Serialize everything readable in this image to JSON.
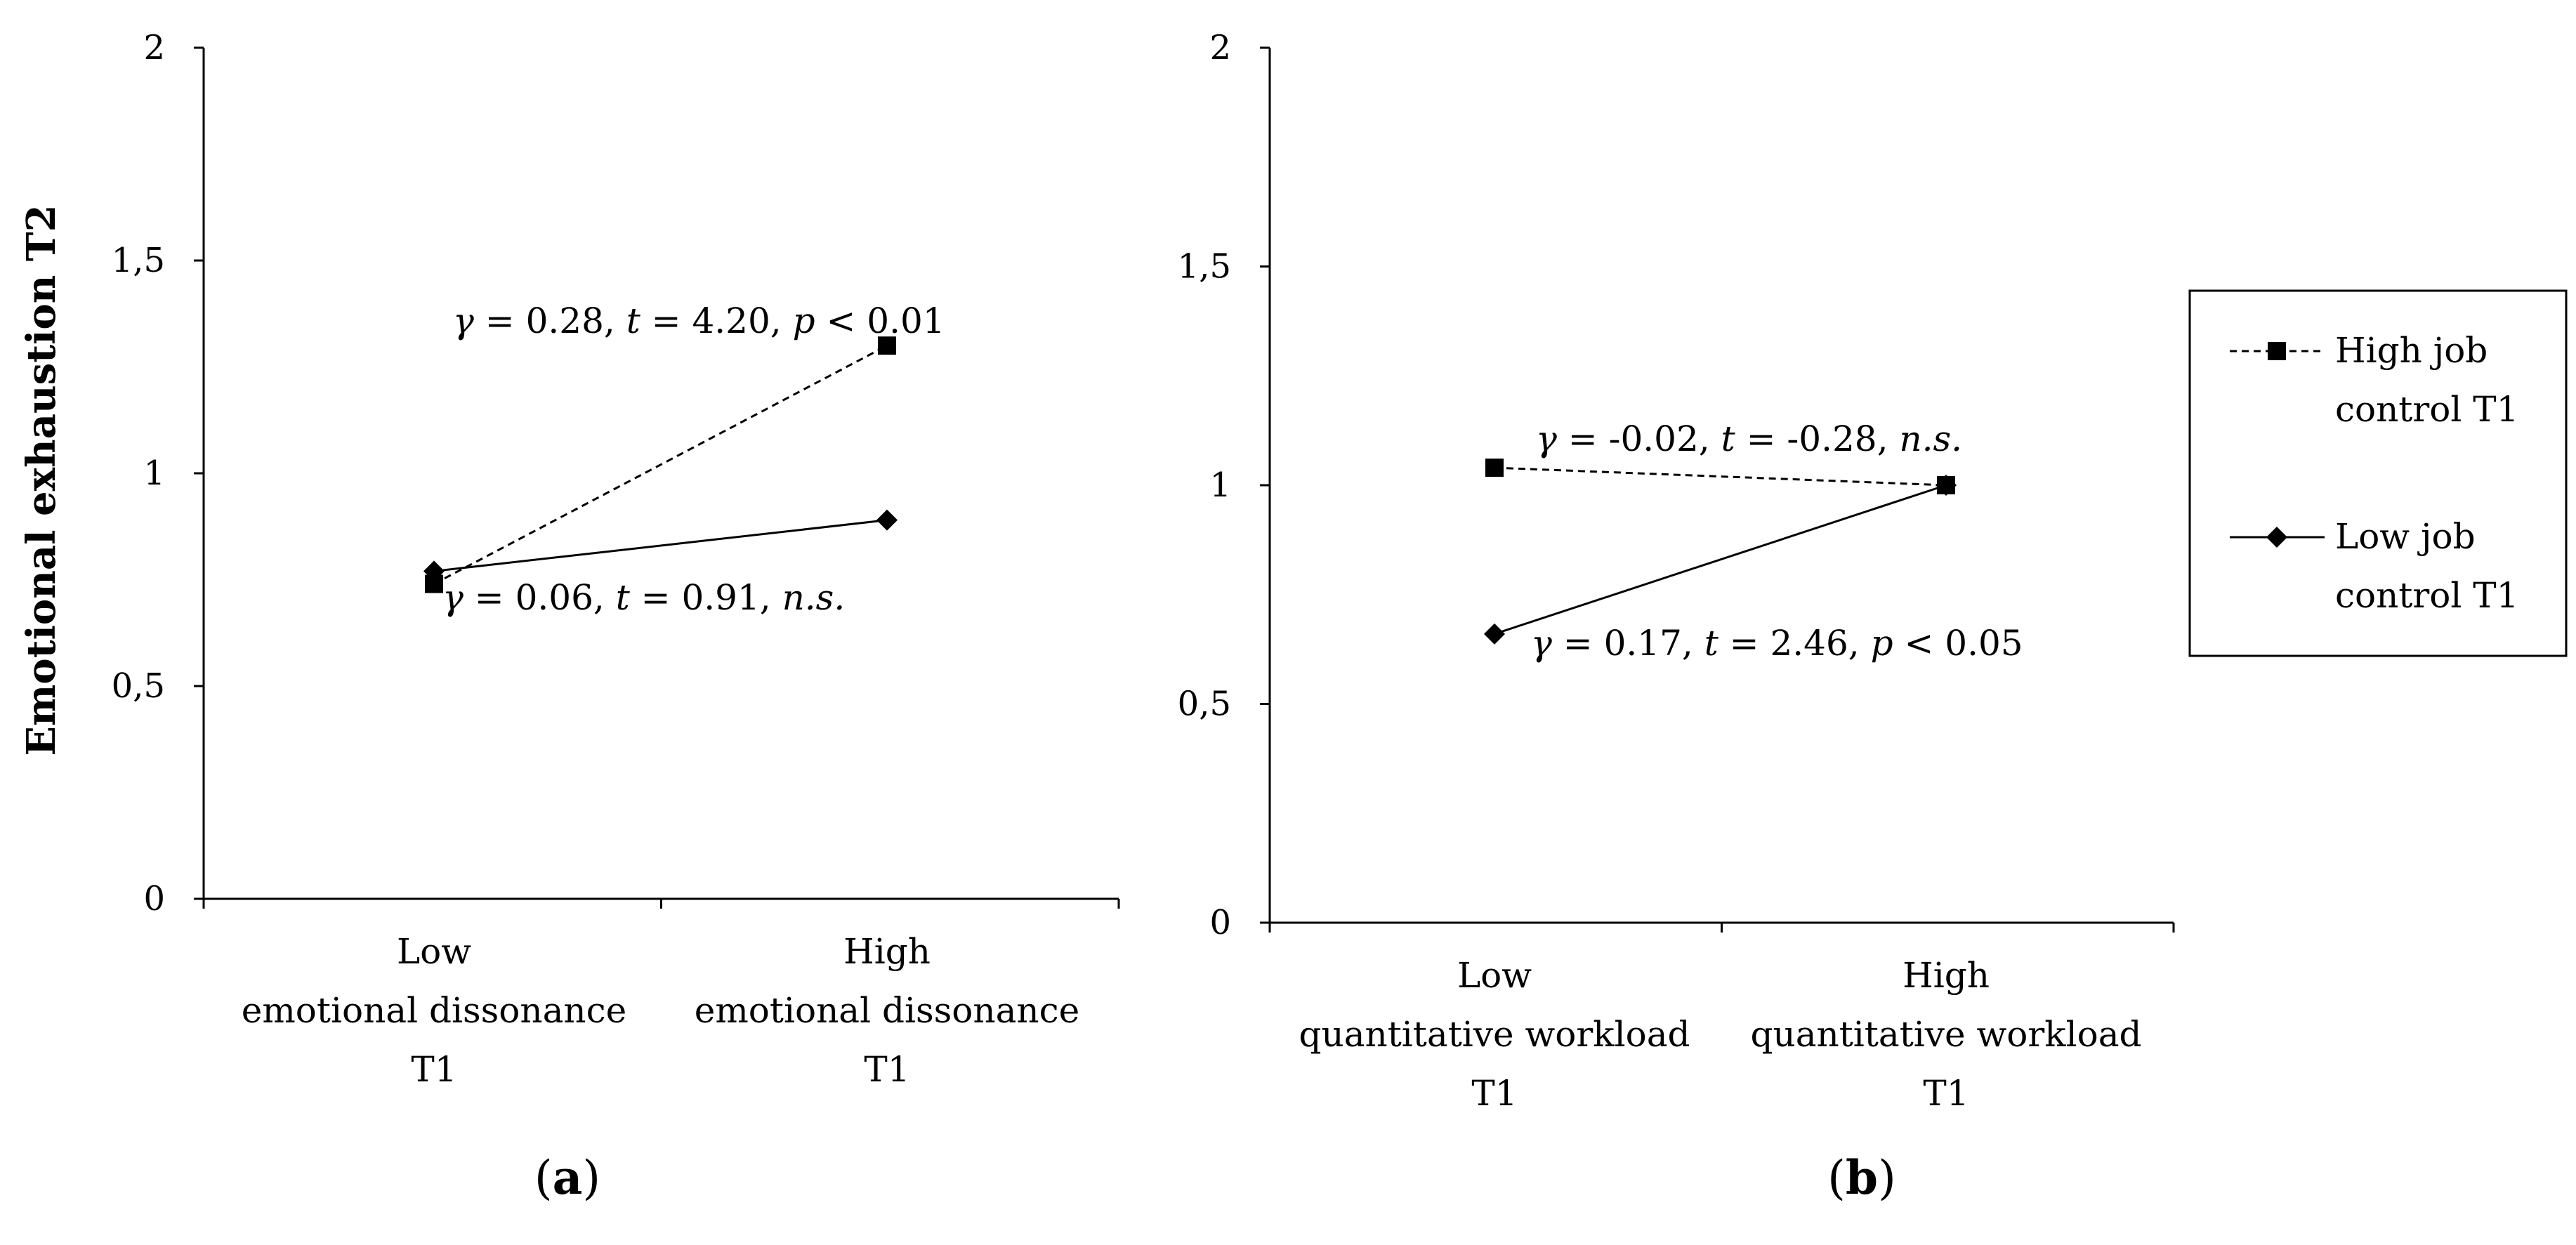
{
  "chart_data": [
    {
      "id": "a",
      "type": "line",
      "panel_label": "a",
      "ylabel": "Emotional exhaustion T2",
      "ylim": [
        0,
        2
      ],
      "yticks": [
        0,
        0.5,
        1,
        1.5,
        2
      ],
      "ytick_labels": [
        "0",
        "0,5",
        "1",
        "1,5",
        "2"
      ],
      "categories": [
        [
          "Low",
          "emotional dissonance",
          "T1"
        ],
        [
          "High",
          "emotional dissonance",
          "T1"
        ]
      ],
      "series": [
        {
          "name": "High job control T1",
          "marker": "square",
          "dash": true,
          "values": [
            0.74,
            1.3
          ]
        },
        {
          "name": "Low job control T1",
          "marker": "diamond",
          "dash": false,
          "values": [
            0.77,
            0.89
          ]
        }
      ],
      "annotations": [
        {
          "series": 0,
          "parts": [
            [
              "γ",
              "i"
            ],
            [
              " = 0.28, ",
              ""
            ],
            [
              "t",
              "i"
            ],
            [
              " = 4.20, ",
              ""
            ],
            [
              "p",
              "i"
            ],
            [
              " < 0.01",
              ""
            ]
          ]
        },
        {
          "series": 1,
          "parts": [
            [
              "γ",
              "i"
            ],
            [
              " = 0.06, ",
              ""
            ],
            [
              "t",
              "i"
            ],
            [
              " = 0.91, ",
              ""
            ],
            [
              "n.s.",
              "i"
            ]
          ]
        }
      ]
    },
    {
      "id": "b",
      "type": "line",
      "panel_label": "b",
      "ylabel": "",
      "ylim": [
        0,
        2
      ],
      "yticks": [
        0,
        0.5,
        1,
        1.5,
        2
      ],
      "ytick_labels": [
        "0",
        "0,5",
        "1",
        "1,5",
        "2"
      ],
      "categories": [
        [
          "Low",
          "quantitative workload",
          "T1"
        ],
        [
          "High",
          "quantitative workload",
          "T1"
        ]
      ],
      "series": [
        {
          "name": "High job control T1",
          "marker": "square",
          "dash": true,
          "values": [
            1.04,
            1.0
          ]
        },
        {
          "name": "Low job control T1",
          "marker": "diamond",
          "dash": false,
          "values": [
            0.66,
            1.0
          ]
        }
      ],
      "annotations": [
        {
          "series": 0,
          "parts": [
            [
              "γ",
              "i"
            ],
            [
              " = -0.02, ",
              ""
            ],
            [
              "t",
              "i"
            ],
            [
              " = -0.28, ",
              ""
            ],
            [
              "n.s.",
              "i"
            ]
          ]
        },
        {
          "series": 1,
          "parts": [
            [
              "γ",
              "i"
            ],
            [
              " = 0.17, ",
              ""
            ],
            [
              "t",
              "i"
            ],
            [
              " = 2.46, ",
              ""
            ],
            [
              "p",
              "i"
            ],
            [
              " < 0.05",
              ""
            ]
          ]
        }
      ]
    }
  ],
  "legend": {
    "items": [
      {
        "lines": [
          "High job",
          "control T1"
        ],
        "marker": "square",
        "dash": true
      },
      {
        "lines": [
          "Low job",
          "control T1"
        ],
        "marker": "diamond",
        "dash": false
      }
    ]
  }
}
